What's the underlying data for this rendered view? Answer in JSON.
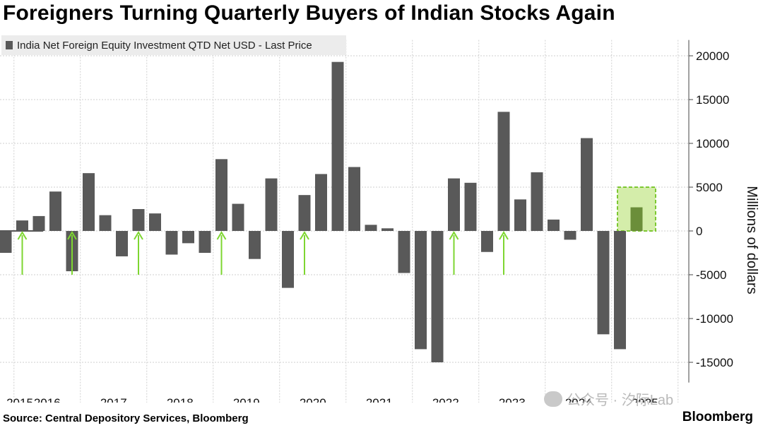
{
  "title": "Foreigners Turning Quarterly Buyers of Indian Stocks Again",
  "source": "Source: Central Depository Services, Bloomberg",
  "brand": "Bloomberg",
  "watermark": "公众号 · 汐际Lab",
  "chart_data": {
    "type": "bar",
    "legend": {
      "label": "India Net Foreign Equity Investment QTD Net USD - Last Price",
      "placement": "top-left"
    },
    "ylabel": "Millions of dollars",
    "ylim": [
      -16500,
      21000
    ],
    "yticks": [
      20000,
      15000,
      10000,
      5000,
      0,
      -5000,
      -10000,
      -15000
    ],
    "ytick_labels": [
      "20000",
      "15000",
      "10000",
      "5000",
      "0",
      "-5000",
      "-10000",
      "-15000"
    ],
    "grid": true,
    "years": [
      "2015",
      "2016",
      "2017",
      "2018",
      "2019",
      "2020",
      "2021",
      "2022",
      "2023",
      "2024",
      "2025"
    ],
    "categories": [
      "2015-Q4",
      "2016-Q1",
      "2016-Q2",
      "2016-Q3",
      "2016-Q4",
      "2017-Q1",
      "2017-Q2",
      "2017-Q3",
      "2017-Q4",
      "2018-Q1",
      "2018-Q2",
      "2018-Q3",
      "2018-Q4",
      "2019-Q1",
      "2019-Q2",
      "2019-Q3",
      "2019-Q4",
      "2020-Q1",
      "2020-Q2",
      "2020-Q3",
      "2020-Q4",
      "2021-Q1",
      "2021-Q2",
      "2021-Q3",
      "2021-Q4",
      "2022-Q1",
      "2022-Q2",
      "2022-Q3",
      "2022-Q4",
      "2023-Q1",
      "2023-Q2",
      "2023-Q3",
      "2023-Q4",
      "2024-Q1",
      "2024-Q2",
      "2024-Q3",
      "2024-Q4",
      "2025-Q1",
      "2025-Q2"
    ],
    "series": [
      {
        "name": "India Net Foreign Equity Investment QTD Net USD - Last Price",
        "values": [
          -2500,
          1200,
          1700,
          4500,
          -4600,
          6600,
          1800,
          -2900,
          2500,
          2000,
          -2700,
          -1400,
          -2500,
          8200,
          3100,
          -3200,
          6000,
          -6500,
          4100,
          6500,
          19300,
          7300,
          700,
          300,
          -4800,
          -13500,
          -15000,
          6000,
          5500,
          -2400,
          13600,
          3600,
          6700,
          1300,
          -1000,
          10600,
          -11800,
          -13500,
          2700
        ]
      }
    ],
    "colors": {
      "bar": "#595959",
      "highlight_bar": "#6b8e3a",
      "highlight_box_fill": "#d4edaa",
      "highlight_box_border": "#7dc832",
      "arrow": "#7ed631"
    },
    "annotations": {
      "arrow_quarters": [
        "2016-Q1",
        "2016-Q4",
        "2017-Q4",
        "2019-Q1",
        "2020-Q2",
        "2022-Q3",
        "2023-Q2"
      ],
      "highlight_quarter": "2025-Q2",
      "highlight_box_range": [
        0,
        5000
      ]
    }
  }
}
